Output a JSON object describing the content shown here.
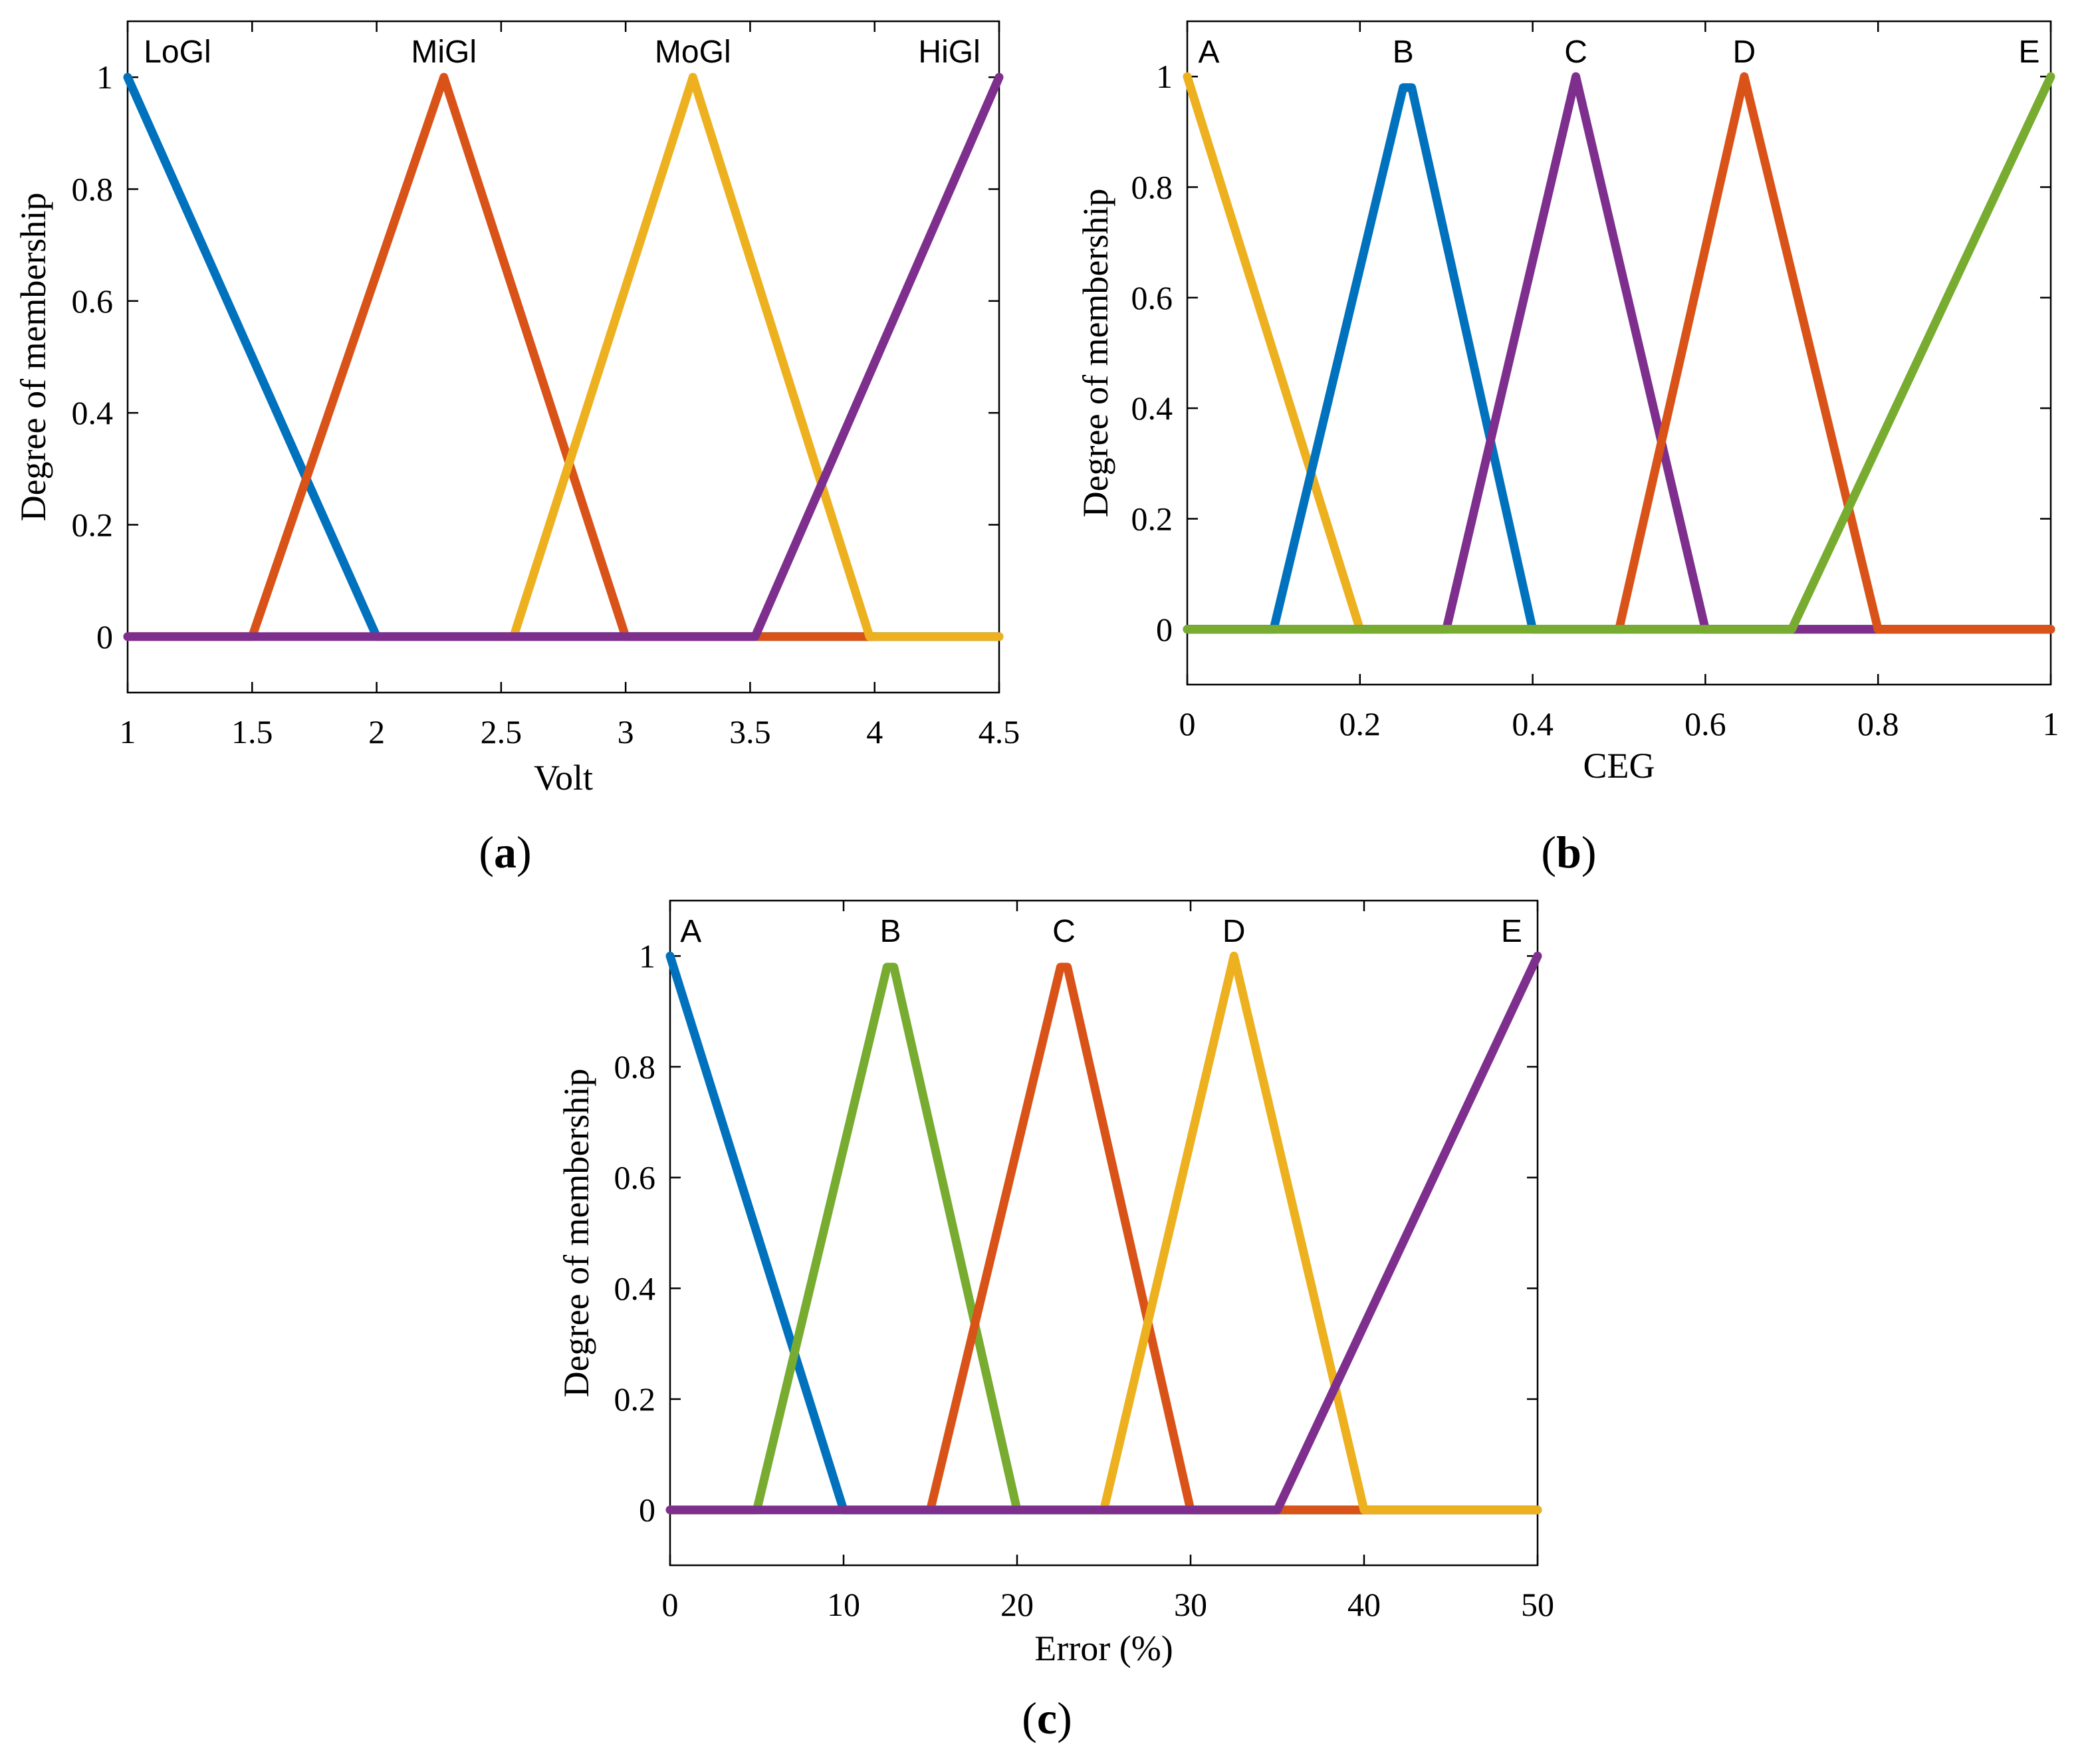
{
  "chart_data": [
    {
      "id": "a",
      "type": "line",
      "caption": "a",
      "xlabel": "Volt",
      "ylabel": "Degree of membership",
      "xlim": [
        1,
        4.5
      ],
      "ylim": [
        -0.1,
        1.1
      ],
      "xticks": [
        "1",
        "1.5",
        "2",
        "2.5",
        "3",
        "3.5",
        "4",
        "4.5"
      ],
      "yticks": [
        "0",
        "0.2",
        "0.4",
        "0.6",
        "0.8",
        "1"
      ],
      "series": [
        {
          "name": "LoGl",
          "color": "#0072BD",
          "points": [
            [
              1,
              1
            ],
            [
              2,
              0
            ],
            [
              4.5,
              0
            ]
          ],
          "label_x": 1.2
        },
        {
          "name": "MiGl",
          "color": "#D95319",
          "points": [
            [
              1,
              0
            ],
            [
              1.5,
              0
            ],
            [
              2.27,
              1
            ],
            [
              3,
              0
            ],
            [
              4,
              0
            ]
          ],
          "label_x": 2.27
        },
        {
          "name": "MoGl",
          "color": "#EDB120",
          "points": [
            [
              2.5,
              0
            ],
            [
              2.55,
              0
            ],
            [
              3.27,
              1
            ],
            [
              3.98,
              0
            ],
            [
              4.5,
              0
            ]
          ],
          "label_x": 3.27
        },
        {
          "name": "HiGl",
          "color": "#7E2F8E",
          "points": [
            [
              1,
              0
            ],
            [
              3.52,
              0
            ],
            [
              4.5,
              1
            ]
          ],
          "label_x": 4.3
        }
      ]
    },
    {
      "id": "b",
      "type": "line",
      "caption": "b",
      "xlabel": "CEG",
      "ylabel": "Degree of membership",
      "xlim": [
        0,
        1
      ],
      "ylim": [
        -0.1,
        1.1
      ],
      "xticks": [
        "0",
        "0.2",
        "0.4",
        "0.6",
        "0.8",
        "1"
      ],
      "yticks": [
        "0",
        "0.2",
        "0.4",
        "0.6",
        "0.8",
        "1"
      ],
      "series": [
        {
          "name": "A",
          "color": "#EDB120",
          "points": [
            [
              0,
              1
            ],
            [
              0.2,
              0
            ],
            [
              1,
              0
            ]
          ],
          "label_x": 0.025
        },
        {
          "name": "B",
          "color": "#0072BD",
          "points": [
            [
              0,
              0
            ],
            [
              0.1,
              0
            ],
            [
              0.25,
              0.98
            ],
            [
              0.26,
              0.98
            ],
            [
              0.4,
              0
            ],
            [
              1,
              0
            ]
          ],
          "label_x": 0.25
        },
        {
          "name": "C",
          "color": "#7E2F8E",
          "points": [
            [
              0,
              0
            ],
            [
              0.3,
              0
            ],
            [
              0.45,
              1
            ],
            [
              0.6,
              0
            ],
            [
              1,
              0
            ]
          ],
          "label_x": 0.45
        },
        {
          "name": "D",
          "color": "#D95319",
          "points": [
            [
              0.5,
              0
            ],
            [
              0.645,
              1
            ],
            [
              0.8,
              0
            ],
            [
              1,
              0
            ]
          ],
          "label_x": 0.645
        },
        {
          "name": "E",
          "color": "#77AC30",
          "points": [
            [
              0,
              0
            ],
            [
              0.7,
              0
            ],
            [
              1,
              1
            ]
          ],
          "label_x": 0.975
        }
      ]
    },
    {
      "id": "c",
      "type": "line",
      "caption": "c",
      "xlabel": "Error (%)",
      "ylabel": "Degree of membership",
      "xlim": [
        0,
        50
      ],
      "ylim": [
        -0.1,
        1.1
      ],
      "xticks": [
        "0",
        "10",
        "20",
        "30",
        "40",
        "50"
      ],
      "yticks": [
        "0",
        "0.2",
        "0.4",
        "0.6",
        "0.8",
        "1"
      ],
      "series": [
        {
          "name": "A",
          "color": "#0072BD",
          "points": [
            [
              0,
              1
            ],
            [
              10,
              0
            ],
            [
              50,
              0
            ]
          ],
          "label_x": 1.2
        },
        {
          "name": "B",
          "color": "#77AC30",
          "points": [
            [
              0,
              0
            ],
            [
              5,
              0
            ],
            [
              12.5,
              0.98
            ],
            [
              12.9,
              0.98
            ],
            [
              20,
              0
            ],
            [
              50,
              0
            ]
          ],
          "label_x": 12.7
        },
        {
          "name": "C",
          "color": "#D95319",
          "points": [
            [
              15,
              0
            ],
            [
              22.5,
              0.98
            ],
            [
              22.9,
              0.98
            ],
            [
              30,
              0
            ],
            [
              50,
              0
            ]
          ],
          "label_x": 22.7
        },
        {
          "name": "D",
          "color": "#EDB120",
          "points": [
            [
              25,
              0
            ],
            [
              32.5,
              1
            ],
            [
              40,
              0
            ],
            [
              50,
              0
            ]
          ],
          "label_x": 32.5
        },
        {
          "name": "E",
          "color": "#7E2F8E",
          "points": [
            [
              0,
              0
            ],
            [
              35,
              0
            ],
            [
              50,
              1
            ]
          ],
          "label_x": 48.5
        }
      ]
    }
  ]
}
